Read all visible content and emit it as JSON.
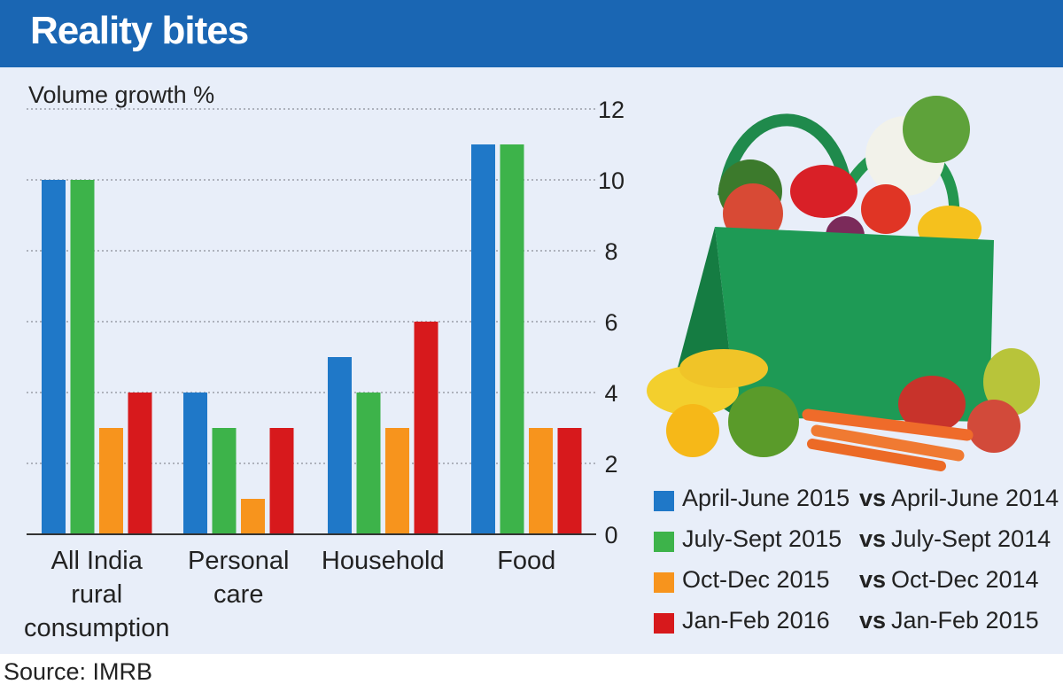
{
  "header": {
    "title": "Reality bites"
  },
  "source": "Source: IMRB",
  "illustration": {
    "name": "grocery-bag-with-vegetables"
  },
  "chart_data": {
    "type": "bar",
    "title": "Reality bites",
    "ylabel": "Volume growth %",
    "xlabel": "",
    "ylim": [
      0,
      12
    ],
    "yticks": [
      0,
      2,
      4,
      6,
      8,
      10,
      12
    ],
    "y_axis_side": "right",
    "grid": "horizontal-dotted",
    "legend_position": "bottom-right",
    "categories": [
      [
        "All India",
        "rural",
        "consumption"
      ],
      [
        "Personal",
        "care"
      ],
      [
        "Household"
      ],
      [
        "Food"
      ]
    ],
    "series": [
      {
        "name": "April-June 2015",
        "compare": "April-June 2014",
        "vs": "vs",
        "color": "#1f78c8",
        "values": [
          10,
          4,
          5,
          11
        ]
      },
      {
        "name": "July-Sept 2015",
        "compare": "July-Sept 2014",
        "vs": "vs",
        "color": "#3db34a",
        "values": [
          10,
          3,
          4,
          11
        ]
      },
      {
        "name": "Oct-Dec 2015",
        "compare": "Oct-Dec 2014",
        "vs": "vs",
        "color": "#f7941d",
        "values": [
          3,
          1,
          3,
          3
        ]
      },
      {
        "name": "Jan-Feb 2016",
        "compare": "Jan-Feb 2015",
        "vs": "vs",
        "color": "#d7191c",
        "values": [
          4,
          3,
          6,
          3
        ]
      }
    ]
  }
}
